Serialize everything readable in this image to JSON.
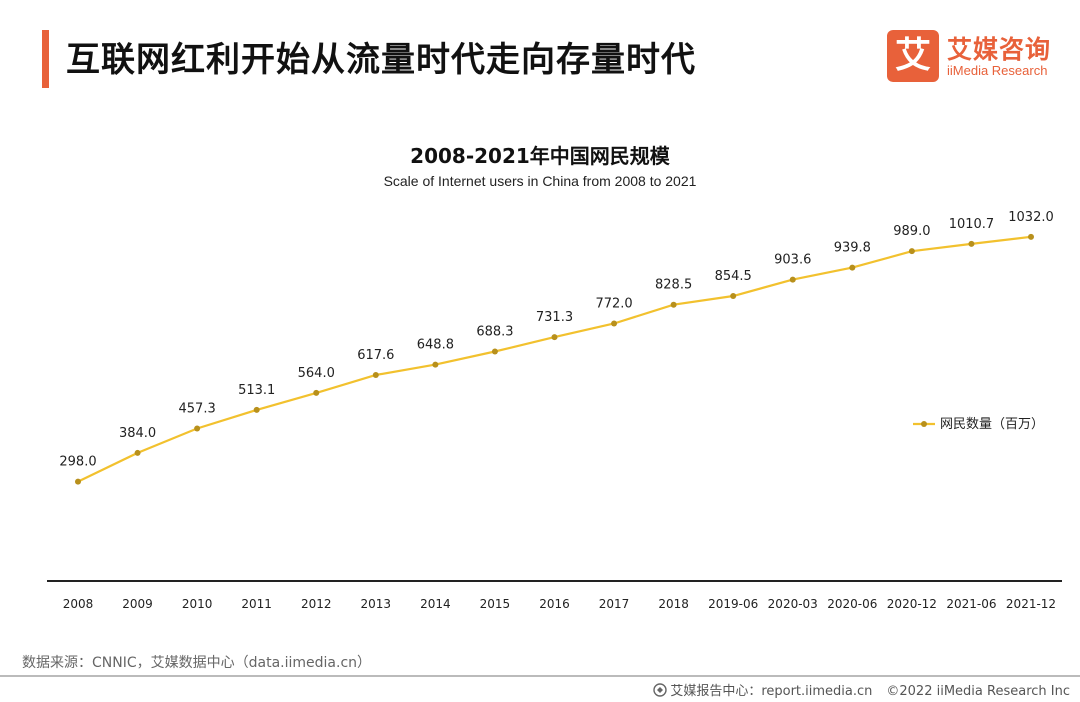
{
  "header": {
    "title": "互联网红利开始从流量时代走向存量时代",
    "logo_mark": "艾",
    "logo_cn": "艾媒咨询",
    "logo_en": "iiMedia Research",
    "accent_color": "#e8613a"
  },
  "chart_data": {
    "type": "line",
    "title": "2008-2021年中国网民规模",
    "subtitle": "Scale of Internet users in China from 2008 to 2021",
    "categories": [
      "2008",
      "2009",
      "2010",
      "2011",
      "2012",
      "2013",
      "2014",
      "2015",
      "2016",
      "2017",
      "2018",
      "2019-06",
      "2020-03",
      "2020-06",
      "2020-12",
      "2021-06",
      "2021-12"
    ],
    "series": [
      {
        "name": "网民数量（百万）",
        "values": [
          298.0,
          384.0,
          457.3,
          513.1,
          564.0,
          617.6,
          648.8,
          688.3,
          731.3,
          772.0,
          828.5,
          854.5,
          903.6,
          939.8,
          989.0,
          1010.7,
          1032.0
        ],
        "labels": [
          "298.0",
          "384.0",
          "457.3",
          "513.1",
          "564.0",
          "617.6",
          "648.8",
          "688.3",
          "731.3",
          "772.0",
          "828.5",
          "854.5",
          "903.6",
          "939.8",
          "989.0",
          "1010.7",
          "1032.0"
        ],
        "color": "#f2c12e",
        "marker_color": "#b8901c"
      }
    ],
    "ylim": [
      0,
      1250
    ],
    "grid": false,
    "legend": "right"
  },
  "footer": {
    "source": "数据来源：CNNIC，艾媒数据中心（data.iimedia.cn）",
    "report_center": "艾媒报告中心：report.iimedia.cn",
    "copyright": "©2022  iiMedia Research  Inc"
  }
}
